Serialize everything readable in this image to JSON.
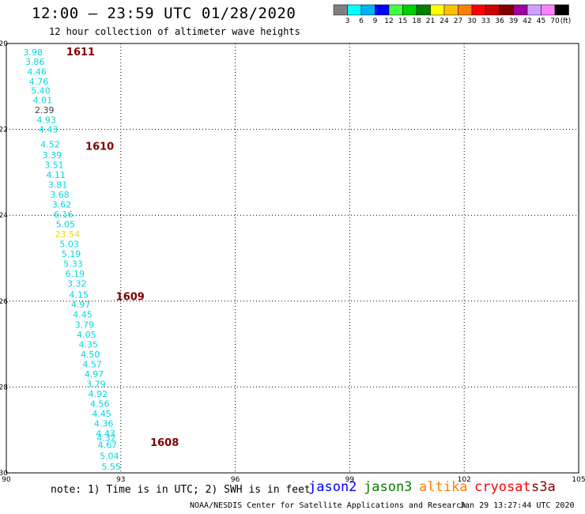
{
  "header": {
    "title": "12:00 — 23:59 UTC 01/28/2020",
    "subtitle": "12 hour collection of altimeter wave heights"
  },
  "color_scale": {
    "labels": [
      "3",
      "6",
      "9",
      "12",
      "15",
      "18",
      "21",
      "24",
      "27",
      "30",
      "33",
      "36",
      "39",
      "42",
      "45",
      "70"
    ],
    "unit_label": "(ft)",
    "colors": [
      "#808080",
      "#00ffff",
      "#00b0ff",
      "#0000ff",
      "#40ff40",
      "#00d000",
      "#008000",
      "#ffff00",
      "#ffc000",
      "#ff8000",
      "#ff0000",
      "#d00000",
      "#800000",
      "#a000a0",
      "#d0a0ff",
      "#ff80ff",
      "#000000"
    ]
  },
  "axes": {
    "x_ticks": [
      "90",
      "93",
      "96",
      "99",
      "102",
      "105"
    ],
    "y_ticks": [
      "-20",
      "-22",
      "-24",
      "-26",
      "-28",
      "-30"
    ]
  },
  "passes": [
    {
      "label": "1611",
      "lon": 91.2,
      "lat": -20.2
    },
    {
      "label": "1610",
      "lon": 91.7,
      "lat": -22.4
    },
    {
      "label": "1609",
      "lon": 92.5,
      "lat": -25.9
    },
    {
      "label": "1608",
      "lon": 93.4,
      "lat": -29.3
    }
  ],
  "observations": [
    {
      "v": "3.98",
      "lon": 90.7,
      "lat": -20.2,
      "c": "cyan"
    },
    {
      "v": "3.86",
      "lon": 90.75,
      "lat": -20.42,
      "c": "cyan"
    },
    {
      "v": "4.46",
      "lon": 90.8,
      "lat": -20.65,
      "c": "cyan"
    },
    {
      "v": "4.76",
      "lon": 90.85,
      "lat": -20.88,
      "c": "cyan"
    },
    {
      "v": "5.40",
      "lon": 90.9,
      "lat": -21.1,
      "c": "cyan"
    },
    {
      "v": "4.01",
      "lon": 90.95,
      "lat": -21.32,
      "c": "cyan"
    },
    {
      "v": "2.39",
      "lon": 91.0,
      "lat": -21.55,
      "c": "gray"
    },
    {
      "v": "4.93",
      "lon": 91.05,
      "lat": -21.78,
      "c": "cyan"
    },
    {
      "v": "4.43",
      "lon": 91.1,
      "lat": -22.0,
      "c": "cyan"
    },
    {
      "v": "4.52",
      "lon": 91.15,
      "lat": -22.35,
      "c": "cyan"
    },
    {
      "v": "3.39",
      "lon": 91.2,
      "lat": -22.6,
      "c": "cyan"
    },
    {
      "v": "3.51",
      "lon": 91.25,
      "lat": -22.83,
      "c": "cyan"
    },
    {
      "v": "4.11",
      "lon": 91.3,
      "lat": -23.06,
      "c": "cyan"
    },
    {
      "v": "3.81",
      "lon": 91.35,
      "lat": -23.29,
      "c": "cyan"
    },
    {
      "v": "3.68",
      "lon": 91.4,
      "lat": -23.52,
      "c": "cyan"
    },
    {
      "v": "3.62",
      "lon": 91.45,
      "lat": -23.75,
      "c": "cyan"
    },
    {
      "v": "6.16",
      "lon": 91.5,
      "lat": -23.98,
      "c": "cyan"
    },
    {
      "v": "5.05",
      "lon": 91.55,
      "lat": -24.21,
      "c": "cyan"
    },
    {
      "v": "23.54",
      "lon": 91.6,
      "lat": -24.44,
      "c": "yellow"
    },
    {
      "v": "5.03",
      "lon": 91.65,
      "lat": -24.67,
      "c": "cyan"
    },
    {
      "v": "5.19",
      "lon": 91.7,
      "lat": -24.9,
      "c": "cyan"
    },
    {
      "v": "5.33",
      "lon": 91.75,
      "lat": -25.13,
      "c": "cyan"
    },
    {
      "v": "6.19",
      "lon": 91.8,
      "lat": -25.36,
      "c": "cyan"
    },
    {
      "v": "3.32",
      "lon": 91.85,
      "lat": -25.59,
      "c": "cyan"
    },
    {
      "v": "4.15",
      "lon": 91.9,
      "lat": -25.85,
      "c": "cyan"
    },
    {
      "v": "4.97",
      "lon": 91.95,
      "lat": -26.08,
      "c": "cyan"
    },
    {
      "v": "4.45",
      "lon": 92.0,
      "lat": -26.31,
      "c": "cyan"
    },
    {
      "v": "3.79",
      "lon": 92.05,
      "lat": -26.55,
      "c": "cyan"
    },
    {
      "v": "4.05",
      "lon": 92.1,
      "lat": -26.78,
      "c": "cyan"
    },
    {
      "v": "4.35",
      "lon": 92.15,
      "lat": -27.01,
      "c": "cyan"
    },
    {
      "v": "4.50",
      "lon": 92.2,
      "lat": -27.24,
      "c": "cyan"
    },
    {
      "v": "4.57",
      "lon": 92.25,
      "lat": -27.47,
      "c": "cyan"
    },
    {
      "v": "4.97",
      "lon": 92.3,
      "lat": -27.7,
      "c": "cyan"
    },
    {
      "v": "3.79",
      "lon": 92.35,
      "lat": -27.93,
      "c": "cyan"
    },
    {
      "v": "4.92",
      "lon": 92.4,
      "lat": -28.16,
      "c": "cyan"
    },
    {
      "v": "4.56",
      "lon": 92.45,
      "lat": -28.39,
      "c": "cyan"
    },
    {
      "v": "4.45",
      "lon": 92.5,
      "lat": -28.62,
      "c": "cyan"
    },
    {
      "v": "4.36",
      "lon": 92.55,
      "lat": -28.85,
      "c": "cyan"
    },
    {
      "v": "4.43",
      "lon": 92.6,
      "lat": -29.08,
      "c": "cyan"
    },
    {
      "v": "4.32",
      "lon": 92.62,
      "lat": -29.18,
      "c": "cyan"
    },
    {
      "v": "4.67",
      "lon": 92.65,
      "lat": -29.35,
      "c": "cyan"
    },
    {
      "v": "5.04",
      "lon": 92.7,
      "lat": -29.6,
      "c": "cyan"
    },
    {
      "v": "5.55",
      "lon": 92.75,
      "lat": -29.85,
      "c": "cyan"
    }
  ],
  "footer": {
    "note": "note: 1) Time is in UTC; 2) SWH is in feet",
    "satellites": [
      {
        "name": "jason2",
        "color": "#0000ff"
      },
      {
        "name": "jason3",
        "color": "#008000"
      },
      {
        "name": "altika",
        "color": "#ff8000"
      },
      {
        "name": "cryosat",
        "color": "#ff0000"
      },
      {
        "name": "s3a",
        "color": "#800000"
      }
    ],
    "credit": "NOAA/NESDIS Center for Satellite Applications and Research",
    "timestamp": "Jan 29 13:27:44 UTC 2020"
  }
}
